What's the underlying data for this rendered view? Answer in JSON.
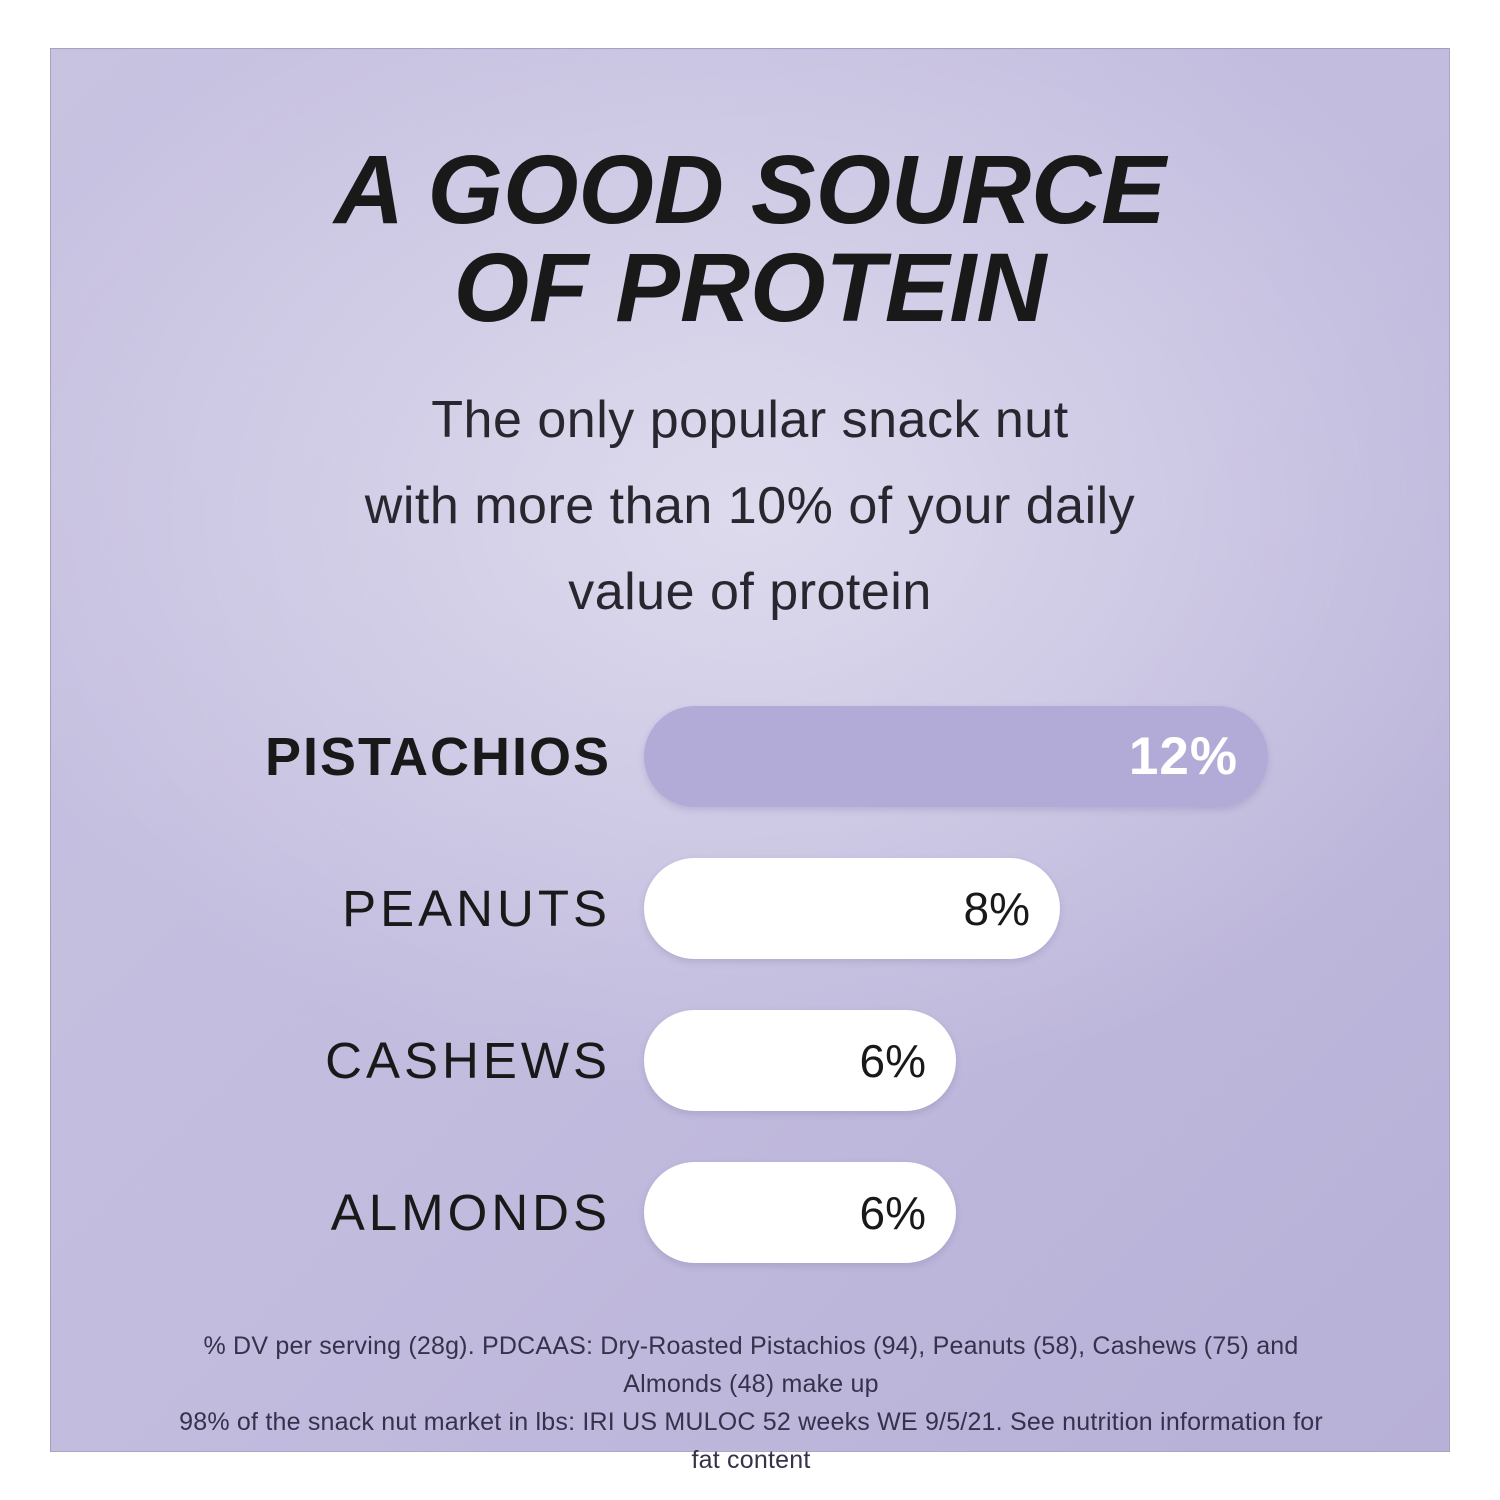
{
  "content": {
    "title_line1": "A GOOD SOURCE",
    "title_line2": "OF PROTEIN",
    "subtitle_lines": [
      "The only popular snack nut",
      "with more than 10% of your daily",
      "value of protein"
    ],
    "footnote_lines": [
      "% DV per serving (28g). PDCAAS: Dry-Roasted Pistachios (94), Peanuts (58), Cashews (75) and Almonds (48) make up",
      "98% of the snack nut market in lbs: IRI US MULOC 52 weeks WE 9/5/21. See nutrition information for fat content"
    ]
  },
  "colors": {
    "page_background": "#ffffff",
    "panel_corner_light": "#c8c3e1",
    "panel_edge": "#c1bbde",
    "panel_corner": "#b7b0d7",
    "panel_center": "#dad8e7",
    "highlight_bar": "#b3abd7",
    "bar_white": "#ffffff",
    "title_text": "#191919",
    "body_text": "#29262f",
    "footnote_text": "#36324c",
    "highlight_value_text": "#ffffff"
  },
  "chart_data": {
    "type": "bar",
    "orientation": "horizontal",
    "title": "A GOOD SOURCE OF PROTEIN",
    "subtitle": "The only popular snack nut with more than 10% of your daily value of protein",
    "categories": [
      "PISTACHIOS",
      "PEANUTS",
      "CASHEWS",
      "ALMONDS"
    ],
    "values": [
      12,
      8,
      6,
      6
    ],
    "value_labels": [
      "12%",
      "8%",
      "6%",
      "6%"
    ],
    "highlight_index": 0,
    "xlim": [
      0,
      12
    ],
    "grid": false,
    "legend": false,
    "value_label_position": "inside-end",
    "category_label_position": "left"
  }
}
